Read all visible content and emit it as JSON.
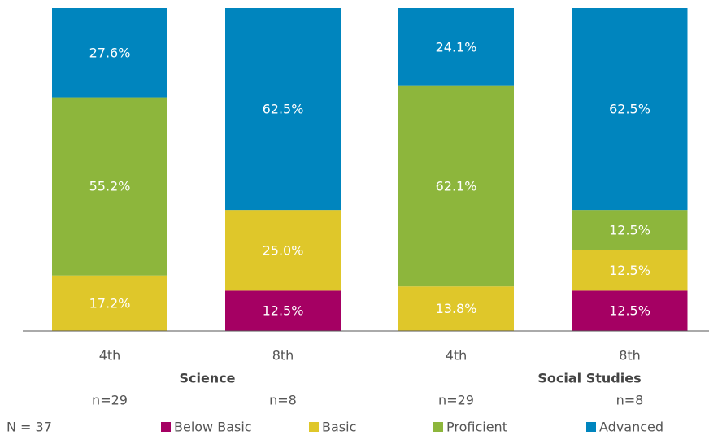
{
  "chart_data": {
    "type": "stacked_bar",
    "categories": [
      "4th",
      "8th",
      "4th",
      "8th"
    ],
    "groups": [
      {
        "label": "Science"
      },
      {
        "label": "Social Studies"
      }
    ],
    "n_labels": [
      "n=29",
      "n=8",
      "n=29",
      "n=8"
    ],
    "note": "N = 37",
    "ylim": [
      0,
      100
    ],
    "legend": "bottom",
    "series": [
      {
        "name": "Below Basic",
        "color": "#a50063",
        "values": [
          0,
          12.5,
          0,
          12.5
        ],
        "value_labels": [
          null,
          "12.5%",
          null,
          "12.5%"
        ]
      },
      {
        "name": "Basic",
        "color": "#dfc72a",
        "values": [
          17.2,
          25.0,
          13.8,
          12.5
        ],
        "value_labels": [
          "17.2%",
          "25.0%",
          "13.8%",
          "12.5%"
        ]
      },
      {
        "name": "Proficient",
        "color": "#8db63c",
        "values": [
          55.2,
          0,
          62.1,
          12.5
        ],
        "value_labels": [
          "55.2%",
          null,
          "62.1%",
          "12.5%"
        ]
      },
      {
        "name": "Advanced",
        "color": "#0085be",
        "values": [
          27.6,
          62.5,
          24.1,
          62.5
        ],
        "value_labels": [
          "27.6%",
          "62.5%",
          "24.1%",
          "62.5%"
        ]
      }
    ]
  }
}
